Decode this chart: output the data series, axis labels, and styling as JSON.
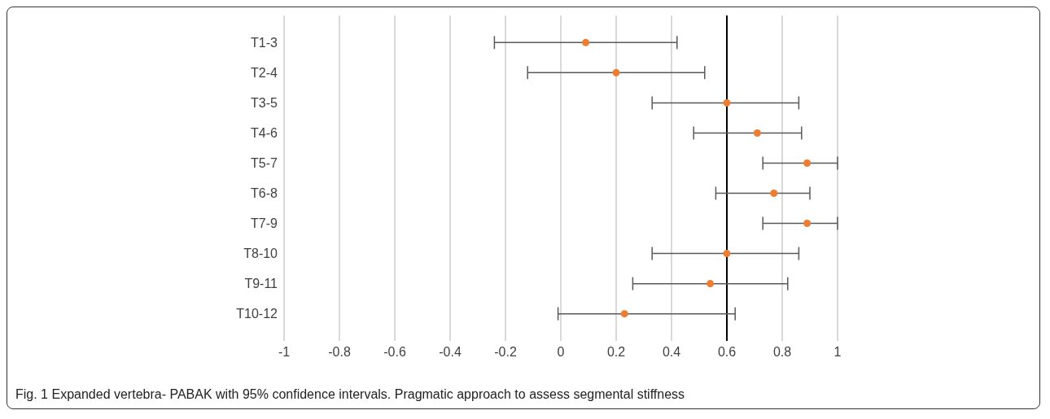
{
  "chart_data": {
    "type": "scatter",
    "orientation": "horizontal",
    "categories": [
      "T1-3",
      "T2-4",
      "T3-5",
      "T4-6",
      "T5-7",
      "T6-8",
      "T7-9",
      "T8-10",
      "T9-11",
      "T10-12"
    ],
    "values": [
      0.09,
      0.2,
      0.6,
      0.71,
      0.89,
      0.77,
      0.89,
      0.6,
      0.54,
      0.23
    ],
    "errors": [
      [
        -0.24,
        0.42
      ],
      [
        -0.12,
        0.52
      ],
      [
        0.33,
        0.86
      ],
      [
        0.48,
        0.87
      ],
      [
        0.73,
        1
      ],
      [
        0.56,
        0.9
      ],
      [
        0.73,
        1
      ],
      [
        0.33,
        0.86
      ],
      [
        0.26,
        0.82
      ],
      [
        -0.01,
        0.63
      ]
    ],
    "color": "#ed7d31",
    "marker": "circle",
    "xlim": [
      -1,
      1
    ],
    "xticks": [
      -1,
      -0.8,
      -0.6,
      -0.4,
      -0.2,
      0,
      0.2,
      0.4,
      0.6,
      0.8,
      1
    ],
    "grid": "x",
    "ref_lines": [
      {
        "axis": "x",
        "value": 0.6,
        "color": "#000000"
      }
    ],
    "annotations": [
      "Fig. 1 Expanded vertebra- PABAK with 95% confidence intervals. Pragmatic approach to assess segmental stiffness"
    ]
  }
}
